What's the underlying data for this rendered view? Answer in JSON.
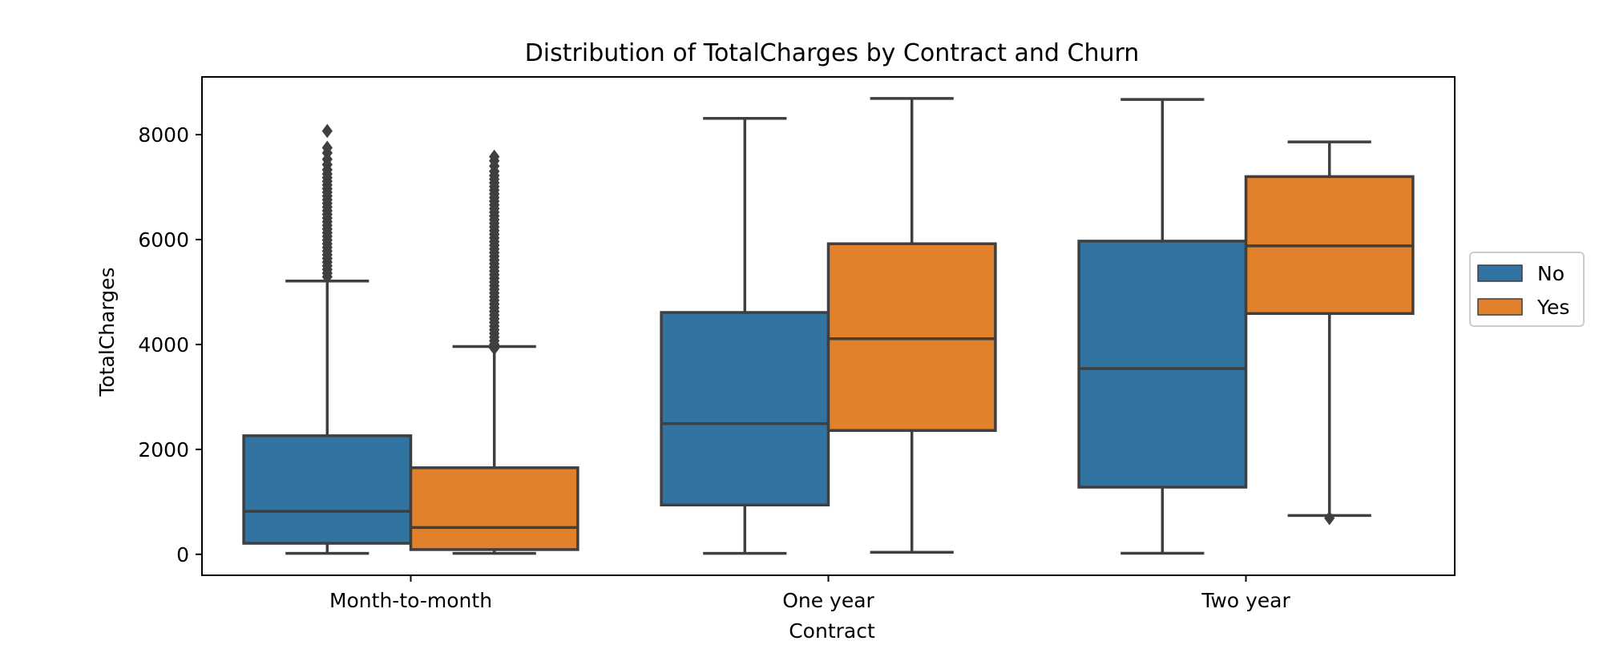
{
  "chart_data": {
    "type": "box",
    "title": "Distribution of TotalCharges by Contract and Churn",
    "xlabel": "Contract",
    "ylabel": "TotalCharges",
    "categories": [
      "Month-to-month",
      "One year",
      "Two year"
    ],
    "ylim": [
      -400,
      9100
    ],
    "yticks": [
      0,
      2000,
      4000,
      6000,
      8000
    ],
    "grid": false,
    "legend_position": "right, outside plot",
    "legend_title": "",
    "series": [
      {
        "name": "No",
        "color": "#3274a1",
        "boxes": [
          {
            "min": 19,
            "q1": 210,
            "median": 820,
            "q3": 2260,
            "max": 5210,
            "outliers": [
              5290,
              5360,
              5430,
              5500,
              5570,
              5640,
              5710,
              5780,
              5850,
              5920,
              5990,
              6060,
              6130,
              6200,
              6270,
              6340,
              6410,
              6480,
              6550,
              6620,
              6690,
              6760,
              6830,
              6900,
              6970,
              7040,
              7110,
              7180,
              7250,
              7330,
              7430,
              7530,
              7650,
              7750,
              8070
            ]
          },
          {
            "min": 19,
            "q1": 940,
            "median": 2490,
            "q3": 4610,
            "max": 8310,
            "outliers": []
          },
          {
            "min": 20,
            "q1": 1280,
            "median": 3540,
            "q3": 5970,
            "max": 8670,
            "outliers": []
          }
        ]
      },
      {
        "name": "Yes",
        "color": "#e1812c",
        "boxes": [
          {
            "min": 19,
            "q1": 90,
            "median": 510,
            "q3": 1650,
            "max": 3960,
            "outliers": [
              3930,
              4000,
              4070,
              4140,
              4210,
              4280,
              4350,
              4420,
              4490,
              4560,
              4630,
              4700,
              4770,
              4840,
              4910,
              4980,
              5050,
              5120,
              5190,
              5260,
              5330,
              5400,
              5470,
              5540,
              5610,
              5680,
              5750,
              5820,
              5890,
              5960,
              6030,
              6100,
              6170,
              6240,
              6310,
              6380,
              6450,
              6520,
              6590,
              6660,
              6730,
              6800,
              6870,
              6940,
              7010,
              7080,
              7150,
              7220,
              7300,
              7400,
              7500,
              7580
            ]
          },
          {
            "min": 40,
            "q1": 2360,
            "median": 4110,
            "q3": 5920,
            "max": 8690,
            "outliers": []
          },
          {
            "min": 740,
            "q1": 4590,
            "median": 5880,
            "q3": 7200,
            "max": 7860,
            "outliers": [
              690
            ]
          }
        ]
      }
    ]
  }
}
